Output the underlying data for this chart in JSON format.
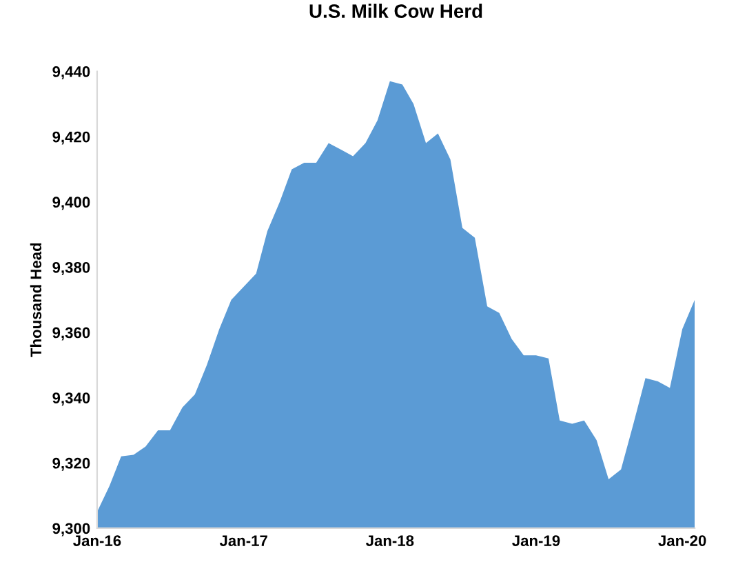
{
  "chart_data": {
    "type": "area",
    "title": "U.S. Milk Cow Herd",
    "ylabel": "Thousand Head",
    "x": [
      "2016-01",
      "2016-02",
      "2016-03",
      "2016-04",
      "2016-05",
      "2016-06",
      "2016-07",
      "2016-08",
      "2016-09",
      "2016-10",
      "2016-11",
      "2016-12",
      "2017-01",
      "2017-02",
      "2017-03",
      "2017-04",
      "2017-05",
      "2017-06",
      "2017-07",
      "2017-08",
      "2017-09",
      "2017-10",
      "2017-11",
      "2017-12",
      "2018-01",
      "2018-02",
      "2018-03",
      "2018-04",
      "2018-05",
      "2018-06",
      "2018-07",
      "2018-08",
      "2018-09",
      "2018-10",
      "2018-11",
      "2018-12",
      "2019-01",
      "2019-02",
      "2019-03",
      "2019-04",
      "2019-05",
      "2019-06",
      "2019-07",
      "2019-08",
      "2019-09",
      "2019-10",
      "2019-11",
      "2019-12",
      "2020-01",
      "2020-02"
    ],
    "series": [
      {
        "color": "#5b9bd5",
        "values": [
          9305,
          9313,
          9322,
          9322.5,
          9325,
          9330,
          9330,
          9337,
          9341,
          9350,
          9361,
          9370,
          9374,
          9378,
          9391,
          9400,
          9410,
          9412,
          9412,
          9418,
          9416,
          9414,
          9418,
          9425,
          9437,
          9436,
          9430,
          9418,
          9421,
          9413,
          9392,
          9389,
          9368,
          9366,
          9358,
          9353,
          9353,
          9352,
          9333,
          9332,
          9333,
          9327,
          9315,
          9318,
          9332,
          9346,
          9345,
          9343,
          9361,
          9370
        ]
      }
    ],
    "xlim": [
      "2016-01",
      "2020-02"
    ],
    "xticks": [
      {
        "value": "2016-01",
        "label": "Jan-16"
      },
      {
        "value": "2017-01",
        "label": "Jan-17"
      },
      {
        "value": "2018-01",
        "label": "Jan-18"
      },
      {
        "value": "2019-01",
        "label": "Jan-19"
      },
      {
        "value": "2020-01",
        "label": "Jan-20"
      }
    ],
    "ylim": [
      9300,
      9440
    ],
    "yticks": [
      {
        "value": 9300,
        "label": "9,300"
      },
      {
        "value": 9320,
        "label": "9,320"
      },
      {
        "value": 9340,
        "label": "9,340"
      },
      {
        "value": 9360,
        "label": "9,360"
      },
      {
        "value": 9380,
        "label": "9,380"
      },
      {
        "value": 9400,
        "label": "9,400"
      },
      {
        "value": 9420,
        "label": "9,420"
      },
      {
        "value": 9440,
        "label": "9,440"
      }
    ],
    "grid": false,
    "legend": false
  }
}
